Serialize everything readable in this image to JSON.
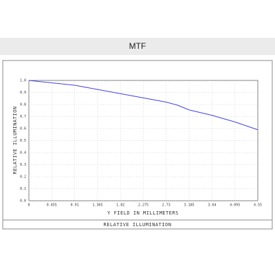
{
  "header": {
    "title": "MTF"
  },
  "chart_data": {
    "type": "line",
    "xlabel": "Y FIELD IN MILLIMETERS",
    "ylabel": "RELATIVE ILLUMINATION",
    "caption": "RELATIVE ILLUMINATION",
    "x": [
      0,
      0.455,
      0.91,
      1.365,
      1.82,
      2.275,
      2.73,
      2.95,
      3.185,
      3.64,
      4.095,
      4.55
    ],
    "series": [
      {
        "color": "#4040e0",
        "values": [
          1.0,
          0.98,
          0.96,
          0.925,
          0.89,
          0.855,
          0.82,
          0.795,
          0.755,
          0.71,
          0.655,
          0.59
        ]
      }
    ],
    "xlim": [
      0,
      4.55
    ],
    "ylim": [
      0,
      1
    ],
    "xticks": [
      0,
      0.455,
      0.91,
      1.365,
      1.82,
      2.275,
      2.73,
      3.185,
      3.64,
      4.095,
      4.55
    ],
    "yticks": [
      {
        "value": 0,
        "label": "0.0"
      },
      0.1,
      0.2,
      0.3,
      0.4,
      0.5,
      0.6,
      0.7,
      0.8,
      0.9,
      {
        "value": 1,
        "label": "1.0"
      }
    ],
    "grid": true
  }
}
